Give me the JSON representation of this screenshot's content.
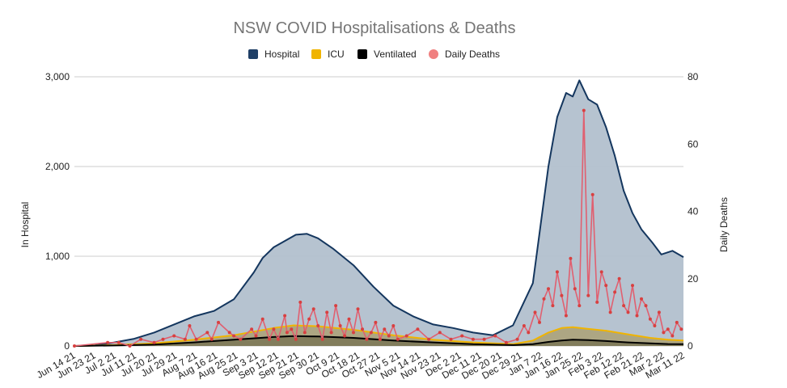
{
  "chart_data": {
    "type": "area",
    "title": "NSW COVID Hospitalisations & Deaths",
    "ylabel_left": "In Hospital",
    "ylabel_right": "Daily Deaths",
    "ylim_left": [
      0,
      3000
    ],
    "ylim_right": [
      0,
      80
    ],
    "yticks_left": [
      "0",
      "1,000",
      "2,000",
      "3,000"
    ],
    "yticks_right": [
      "0",
      "20",
      "40",
      "60",
      "80"
    ],
    "x_labels": [
      "Jun 14 21",
      "Jun 23 21",
      "Jul 2 21",
      "Jul 11 21",
      "Jul 20 21",
      "Jul 29 21",
      "Aug 7 21",
      "Aug 16 21",
      "Aug 25 21",
      "Sep 3 21",
      "Sep 12 21",
      "Sep 21 21",
      "Sep 30 21",
      "Oct 9 21",
      "Oct 18 21",
      "Oct 27 21",
      "Nov 5 21",
      "Nov 14 21",
      "Nov 23 21",
      "Dec 2 21",
      "Dec 11 21",
      "Dec 20 21",
      "Dec 29 21",
      "Jan 7 22",
      "Jan 16 22",
      "Jan 25 22",
      "Feb 3 22",
      "Feb 12 22",
      "Feb 21 22",
      "Mar 2 22",
      "Mar 11 22"
    ],
    "legend": [
      {
        "name": "Hospital",
        "color": "#1f3f66"
      },
      {
        "name": "ICU",
        "color": "#f0b400"
      },
      {
        "name": "Ventilated",
        "color": "#000000"
      },
      {
        "name": "Daily Deaths",
        "color": "#f08080"
      }
    ],
    "colors": {
      "hospital_line": "#14365e",
      "hospital_fill": "#b2c0ce",
      "icu_line": "#f0b400",
      "icu_fill": "#ada47e",
      "vent_line": "#000000",
      "vent_fill": "#7f7a5a",
      "deaths_line": "#e06070",
      "deaths_dot": "#d84040",
      "grid": "#cccccc"
    },
    "series": [
      {
        "name": "Hospital",
        "axis": "left",
        "x": [
          0,
          9,
          18,
          27,
          36,
          45,
          54,
          63,
          72,
          81,
          85,
          90,
          95,
          100,
          105,
          110,
          117,
          126,
          135,
          144,
          153,
          162,
          171,
          180,
          189,
          198,
          207,
          214,
          218,
          222,
          225,
          228,
          232,
          236,
          240,
          244,
          248,
          252,
          256,
          261,
          265,
          270,
          275
        ],
        "values": [
          0,
          5,
          40,
          80,
          150,
          240,
          330,
          390,
          520,
          820,
          980,
          1100,
          1170,
          1240,
          1250,
          1200,
          1080,
          900,
          660,
          450,
          330,
          240,
          200,
          150,
          120,
          230,
          700,
          2000,
          2550,
          2820,
          2780,
          2960,
          2750,
          2690,
          2440,
          2120,
          1730,
          1480,
          1300,
          1150,
          1020,
          1060,
          990
        ]
      },
      {
        "name": "ICU",
        "axis": "left",
        "x": [
          0,
          18,
          36,
          54,
          72,
          90,
          99,
          110,
          126,
          144,
          162,
          180,
          198,
          207,
          214,
          220,
          225,
          232,
          240,
          250,
          260,
          268,
          275
        ],
        "values": [
          0,
          10,
          30,
          70,
          120,
          200,
          230,
          220,
          180,
          120,
          70,
          40,
          20,
          60,
          150,
          200,
          210,
          190,
          170,
          130,
          90,
          70,
          60
        ]
      },
      {
        "name": "Ventilated",
        "axis": "left",
        "x": [
          0,
          18,
          36,
          54,
          72,
          90,
          99,
          110,
          126,
          144,
          162,
          180,
          198,
          207,
          214,
          220,
          225,
          232,
          240,
          250,
          260,
          268,
          275
        ],
        "values": [
          0,
          5,
          15,
          40,
          70,
          100,
          110,
          105,
          90,
          60,
          40,
          20,
          10,
          20,
          45,
          60,
          70,
          65,
          55,
          40,
          30,
          22,
          20
        ]
      },
      {
        "name": "Daily Deaths",
        "axis": "right",
        "x": [
          0,
          15,
          20,
          25,
          30,
          36,
          40,
          45,
          50,
          52,
          55,
          60,
          62,
          65,
          70,
          72,
          75,
          80,
          82,
          85,
          88,
          90,
          92,
          95,
          96,
          98,
          100,
          102,
          104,
          106,
          108,
          110,
          112,
          114,
          116,
          118,
          120,
          122,
          124,
          126,
          128,
          130,
          132,
          134,
          136,
          138,
          140,
          142,
          144,
          146,
          150,
          155,
          160,
          165,
          170,
          175,
          180,
          185,
          190,
          195,
          200,
          203,
          205,
          208,
          210,
          212,
          214,
          216,
          218,
          220,
          222,
          224,
          226,
          228,
          230,
          232,
          234,
          236,
          238,
          240,
          242,
          244,
          246,
          248,
          250,
          252,
          254,
          256,
          258,
          260,
          262,
          264,
          266,
          268,
          270,
          272,
          274
        ],
        "values": [
          0,
          1,
          1,
          0,
          2,
          1,
          2,
          3,
          2,
          6,
          2,
          4,
          2,
          7,
          4,
          3,
          2,
          5,
          3,
          8,
          2,
          5,
          2,
          9,
          4,
          5,
          2,
          13,
          4,
          8,
          11,
          6,
          2,
          10,
          4,
          12,
          6,
          3,
          8,
          4,
          11,
          5,
          2,
          4,
          7,
          2,
          5,
          3,
          6,
          2,
          3,
          5,
          2,
          4,
          2,
          3,
          2,
          2,
          3,
          1,
          2,
          6,
          4,
          10,
          7,
          14,
          17,
          12,
          22,
          15,
          9,
          26,
          17,
          12,
          70,
          15,
          45,
          13,
          22,
          18,
          10,
          16,
          20,
          12,
          10,
          18,
          9,
          14,
          12,
          8,
          6,
          10,
          4,
          5,
          3,
          7,
          5
        ]
      }
    ]
  }
}
